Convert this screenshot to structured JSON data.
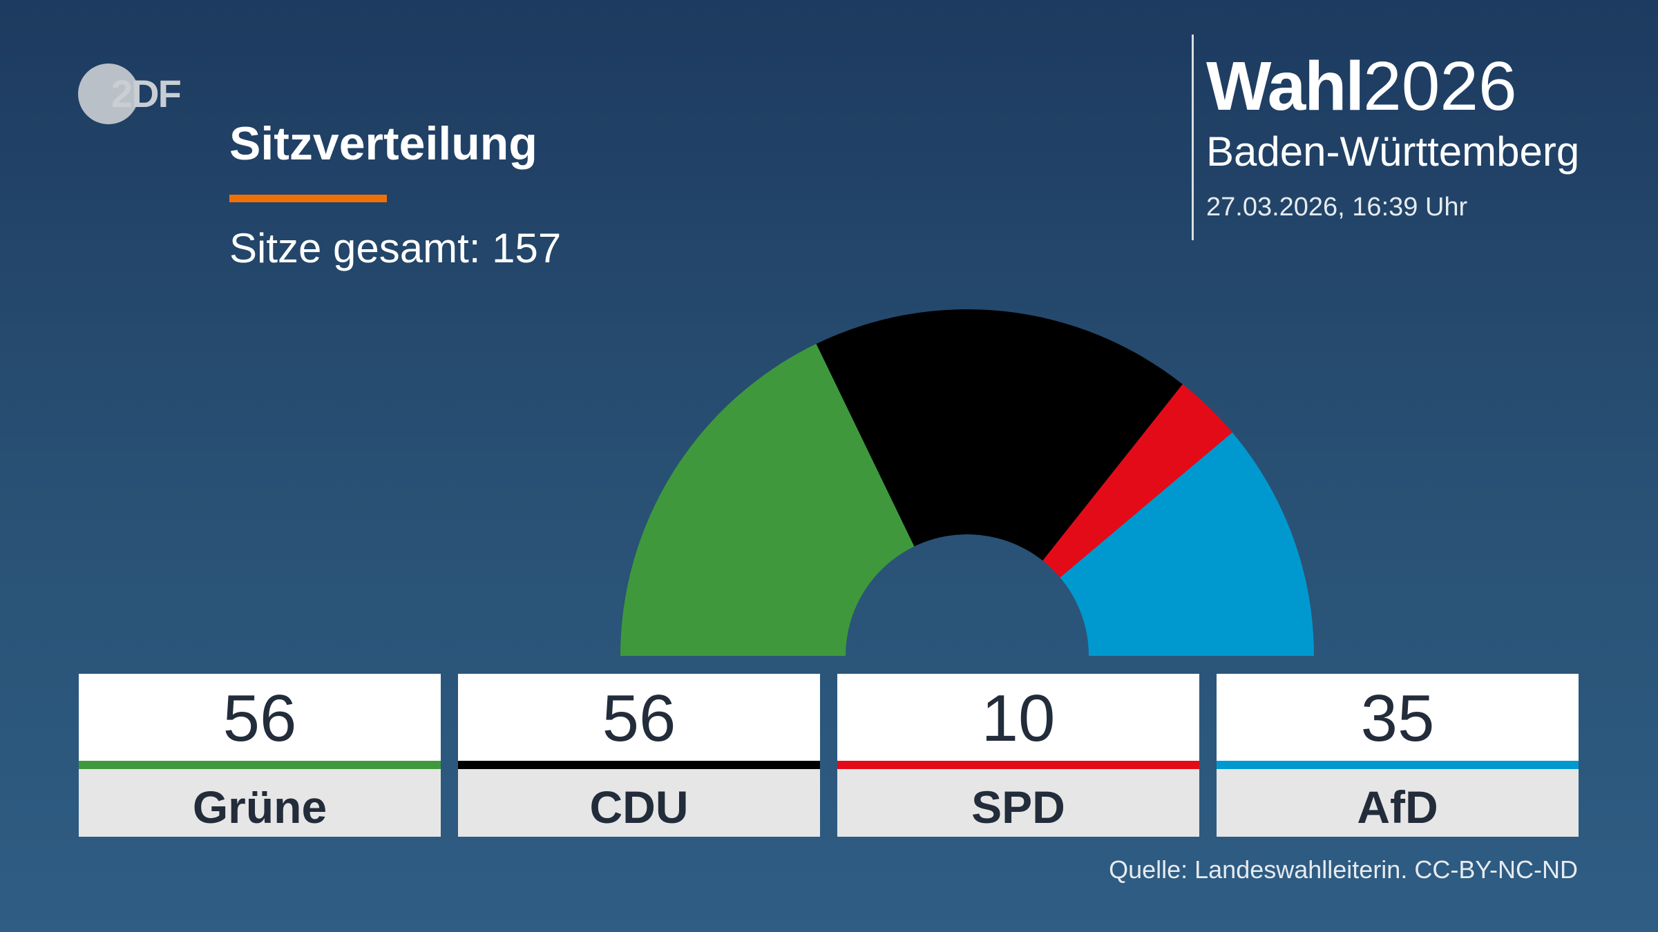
{
  "branding": {
    "logo_text": "2DF",
    "election_strong": "Wahl",
    "election_year": "2026",
    "region": "Baden-Württemberg",
    "timestamp": "27.03.2026, 16:39 Uhr"
  },
  "header": {
    "title": "Sitzverteilung",
    "subtitle": "Sitze gesamt: 157"
  },
  "source": "Quelle: Landeswahlleiterin. CC-BY-NC-ND",
  "colors": {
    "accent": "#f07008",
    "background_top": "#1d3a5f",
    "background_bottom": "#2f5d84"
  },
  "chart_data": {
    "type": "pie",
    "variant": "semicircle-parliament",
    "title": "Sitzverteilung",
    "total": 157,
    "categories": [
      "Grüne",
      "CDU",
      "SPD",
      "AfD"
    ],
    "values": [
      56,
      56,
      10,
      35
    ],
    "colors": [
      "#3f993c",
      "#000000",
      "#e40b18",
      "#0099cf"
    ],
    "series": [
      {
        "name": "Grüne",
        "value": 56,
        "value_label": "56",
        "color": "#3f993c"
      },
      {
        "name": "CDU",
        "value": 56,
        "value_label": "56",
        "color": "#000000"
      },
      {
        "name": "SPD",
        "value": 10,
        "value_label": "10",
        "color": "#e40b18"
      },
      {
        "name": "AfD",
        "value": 35,
        "value_label": "35",
        "color": "#0099cf"
      }
    ]
  }
}
